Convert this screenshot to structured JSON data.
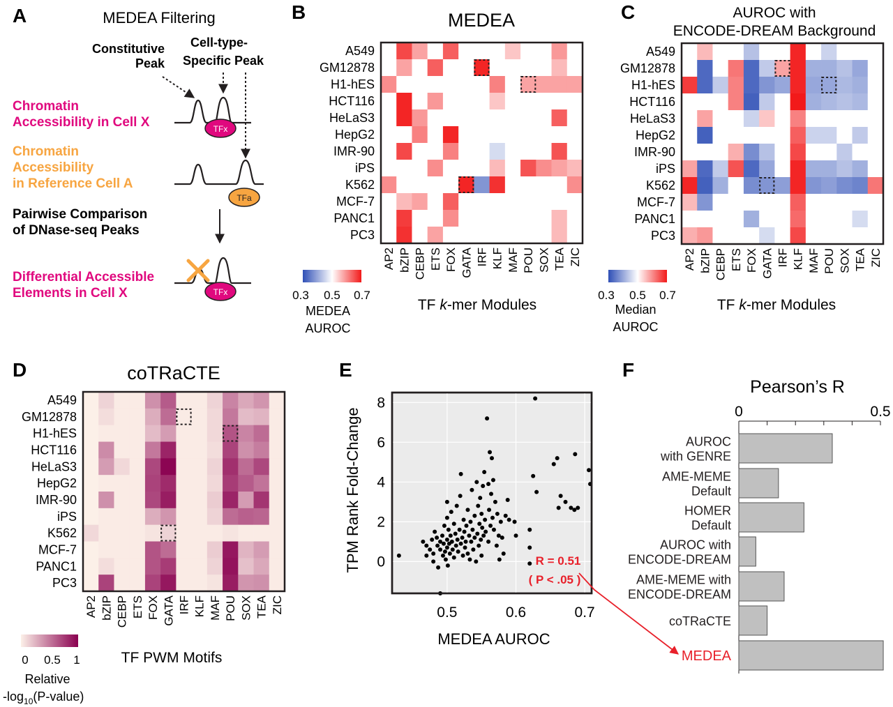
{
  "rows": [
    "A549",
    "GM12878",
    "H1-hES",
    "HCT116",
    "HeLaS3",
    "HepG2",
    "IMR-90",
    "iPS",
    "K562",
    "MCF-7",
    "PANC1",
    "PC3"
  ],
  "panelA": {
    "letter": "A",
    "title": "MEDEA Filtering",
    "constitutive_label": [
      "Constitutive",
      "Peak"
    ],
    "specific_label": [
      "Cell-type-",
      "Specific Peak"
    ],
    "cellx_label": [
      "Chromatin",
      "Accessibility in Cell X"
    ],
    "refa_label": [
      "Chromatin",
      "Accessibility",
      "in Reference Cell A"
    ],
    "pairwise_label": [
      "Pairwise Comparison",
      "of DNase-seq Peaks"
    ],
    "diff_label": [
      "Differential Accessible",
      "Elements in Cell X"
    ],
    "tfx": "TFx",
    "tfa": "TFa",
    "colors": {
      "magenta": "#e0087e",
      "orange": "#f7a541"
    }
  },
  "panelB": {
    "letter": "B",
    "title": "MEDEA",
    "xlabel_pre": "TF ",
    "xlabel_it": "k",
    "xlabel_post": "-mer Modules",
    "cols": [
      "AP2",
      "bZIP",
      "CEBP",
      "ETS",
      "FOX",
      "GATA",
      "IRF",
      "KLF",
      "MAF",
      "POU",
      "SOX",
      "TEA",
      "ZIC"
    ],
    "scale_ticks": [
      "0.3",
      "0.5",
      "0.7"
    ],
    "scale_label": [
      "MEDEA",
      "AUROC"
    ],
    "range": [
      0.3,
      0.7
    ],
    "matrix": [
      [
        0.5,
        0.66,
        0.58,
        0.5,
        0.64,
        0.5,
        0.5,
        0.5,
        0.55,
        0.5,
        0.5,
        0.59,
        0.5
      ],
      [
        0.5,
        0.58,
        0.5,
        0.64,
        0.5,
        0.5,
        0.69,
        0.5,
        0.5,
        0.5,
        0.5,
        0.56,
        0.5
      ],
      [
        0.6,
        0.5,
        0.5,
        0.5,
        0.5,
        0.5,
        0.5,
        0.61,
        0.5,
        0.58,
        0.58,
        0.58,
        0.58
      ],
      [
        0.5,
        0.69,
        0.5,
        0.59,
        0.5,
        0.5,
        0.5,
        0.55,
        0.5,
        0.5,
        0.5,
        0.5,
        0.5
      ],
      [
        0.5,
        0.69,
        0.59,
        0.5,
        0.5,
        0.5,
        0.5,
        0.5,
        0.5,
        0.5,
        0.5,
        0.64,
        0.5
      ],
      [
        0.5,
        0.5,
        0.61,
        0.5,
        0.69,
        0.5,
        0.5,
        0.5,
        0.5,
        0.5,
        0.5,
        0.5,
        0.5
      ],
      [
        0.5,
        0.66,
        0.5,
        0.5,
        0.61,
        0.5,
        0.5,
        0.46,
        0.5,
        0.5,
        0.5,
        0.65,
        0.5
      ],
      [
        0.5,
        0.5,
        0.5,
        0.6,
        0.5,
        0.5,
        0.5,
        0.56,
        0.5,
        0.65,
        0.6,
        0.58,
        0.56
      ],
      [
        0.6,
        0.5,
        0.5,
        0.5,
        0.5,
        0.69,
        0.38,
        0.68,
        0.5,
        0.5,
        0.5,
        0.5,
        0.6
      ],
      [
        0.5,
        0.56,
        0.58,
        0.5,
        0.64,
        0.5,
        0.5,
        0.5,
        0.5,
        0.5,
        0.5,
        0.5,
        0.5
      ],
      [
        0.5,
        0.67,
        0.5,
        0.5,
        0.6,
        0.5,
        0.5,
        0.5,
        0.5,
        0.5,
        0.5,
        0.56,
        0.5
      ],
      [
        0.5,
        0.68,
        0.5,
        0.58,
        0.5,
        0.5,
        0.5,
        0.5,
        0.5,
        0.5,
        0.5,
        0.56,
        0.5
      ]
    ],
    "boxes": [
      [
        1,
        6
      ],
      [
        2,
        9
      ],
      [
        8,
        5
      ]
    ]
  },
  "panelC": {
    "letter": "C",
    "title": [
      "AUROC with",
      "ENCODE-DREAM Background"
    ],
    "xlabel_pre": "TF ",
    "xlabel_it": "k",
    "xlabel_post": "-mer Modules",
    "cols": [
      "AP2",
      "bZIP",
      "CEBP",
      "ETS",
      "FOX",
      "GATA",
      "IRF",
      "KLF",
      "MAF",
      "POU",
      "SOX",
      "TEA",
      "ZIC"
    ],
    "scale_ticks": [
      "0.3",
      "0.5",
      "0.7"
    ],
    "scale_label": [
      "Median",
      "AUROC"
    ],
    "range": [
      0.3,
      0.7
    ],
    "matrix": [
      [
        0.5,
        0.56,
        0.5,
        0.5,
        0.43,
        0.5,
        0.5,
        0.69,
        0.5,
        0.45,
        0.5,
        0.5,
        0.5
      ],
      [
        0.5,
        0.33,
        0.5,
        0.62,
        0.33,
        0.44,
        0.58,
        0.69,
        0.41,
        0.41,
        0.43,
        0.4,
        0.5
      ],
      [
        0.67,
        0.33,
        0.44,
        0.61,
        0.33,
        0.38,
        0.4,
        0.69,
        0.4,
        0.4,
        0.42,
        0.41,
        0.5
      ],
      [
        0.5,
        0.5,
        0.5,
        0.61,
        0.32,
        0.44,
        0.5,
        0.7,
        0.41,
        0.42,
        0.43,
        0.42,
        0.5
      ],
      [
        0.5,
        0.58,
        0.5,
        0.5,
        0.45,
        0.55,
        0.5,
        0.61,
        0.5,
        0.5,
        0.5,
        0.5,
        0.5
      ],
      [
        0.5,
        0.32,
        0.5,
        0.5,
        0.5,
        0.5,
        0.5,
        0.64,
        0.45,
        0.45,
        0.5,
        0.44,
        0.5
      ],
      [
        0.5,
        0.5,
        0.5,
        0.57,
        0.37,
        0.43,
        0.5,
        0.66,
        0.5,
        0.5,
        0.44,
        0.5,
        0.5
      ],
      [
        0.58,
        0.33,
        0.44,
        0.65,
        0.33,
        0.4,
        0.5,
        0.69,
        0.41,
        0.41,
        0.43,
        0.41,
        0.5
      ],
      [
        0.69,
        0.32,
        0.41,
        0.5,
        0.37,
        0.38,
        0.39,
        0.69,
        0.38,
        0.39,
        0.37,
        0.36,
        0.62
      ],
      [
        0.56,
        0.38,
        0.5,
        0.5,
        0.5,
        0.5,
        0.5,
        0.64,
        0.5,
        0.5,
        0.5,
        0.5,
        0.5
      ],
      [
        0.5,
        0.5,
        0.5,
        0.5,
        0.41,
        0.5,
        0.5,
        0.63,
        0.5,
        0.5,
        0.5,
        0.46,
        0.5
      ],
      [
        0.57,
        0.59,
        0.5,
        0.5,
        0.5,
        0.46,
        0.5,
        0.66,
        0.5,
        0.5,
        0.5,
        0.5,
        0.5
      ]
    ],
    "boxes": [
      [
        1,
        6
      ],
      [
        2,
        9
      ],
      [
        8,
        5
      ]
    ]
  },
  "panelD": {
    "letter": "D",
    "title": "coTRaCTE",
    "xlabel": "TF PWM Motifs",
    "cols": [
      "AP2",
      "bZIP",
      "CEBP",
      "ETS",
      "FOX",
      "GATA",
      "IRF",
      "KLF",
      "MAF",
      "POU",
      "SOX",
      "TEA",
      "ZIC"
    ],
    "scale_ticks": [
      "0",
      "0.5",
      "1"
    ],
    "scale_label_1": "Relative",
    "scale_label_2_pre": "-log",
    "scale_label_2_sub": "10",
    "scale_label_2_post": "(P-value)",
    "range": [
      0,
      1
    ],
    "matrix": [
      [
        0.0,
        0.12,
        0.02,
        0.02,
        0.4,
        0.62,
        0.02,
        0.02,
        0.12,
        0.45,
        0.3,
        0.38,
        0.02
      ],
      [
        0.0,
        0.08,
        0.02,
        0.02,
        0.28,
        0.55,
        0.02,
        0.02,
        0.1,
        0.5,
        0.22,
        0.25,
        0.02
      ],
      [
        0.0,
        0.02,
        0.02,
        0.02,
        0.22,
        0.35,
        0.02,
        0.02,
        0.1,
        0.65,
        0.45,
        0.55,
        0.02
      ],
      [
        0.0,
        0.42,
        0.02,
        0.02,
        0.5,
        0.85,
        0.02,
        0.02,
        0.08,
        0.72,
        0.4,
        0.48,
        0.02
      ],
      [
        0.0,
        0.35,
        0.1,
        0.02,
        0.7,
        0.98,
        0.02,
        0.02,
        0.12,
        0.8,
        0.55,
        0.7,
        0.02
      ],
      [
        0.0,
        0.02,
        0.02,
        0.02,
        0.72,
        0.82,
        0.02,
        0.02,
        0.1,
        0.75,
        0.62,
        0.52,
        0.02
      ],
      [
        0.0,
        0.4,
        0.02,
        0.02,
        0.7,
        0.88,
        0.02,
        0.02,
        0.15,
        0.85,
        0.35,
        0.78,
        0.02
      ],
      [
        0.0,
        0.02,
        0.02,
        0.02,
        0.28,
        0.38,
        0.02,
        0.02,
        0.12,
        0.55,
        0.6,
        0.58,
        0.02
      ],
      [
        0.1,
        0.02,
        0.02,
        0.02,
        0.05,
        0.12,
        0.02,
        0.02,
        0.02,
        0.05,
        0.02,
        0.02,
        0.02
      ],
      [
        0.0,
        0.02,
        0.02,
        0.02,
        0.65,
        0.55,
        0.02,
        0.02,
        0.15,
        0.9,
        0.25,
        0.35,
        0.02
      ],
      [
        0.0,
        0.08,
        0.02,
        0.02,
        0.65,
        0.75,
        0.02,
        0.02,
        0.12,
        0.92,
        0.2,
        0.3,
        0.02
      ],
      [
        0.0,
        0.72,
        0.02,
        0.02,
        0.72,
        0.9,
        0.02,
        0.02,
        0.05,
        0.88,
        0.38,
        0.4,
        0.02
      ]
    ],
    "boxes": [
      [
        1,
        6
      ],
      [
        2,
        9
      ],
      [
        8,
        5
      ]
    ]
  },
  "chart_data": [
    {
      "type": "scatter",
      "letter": "E",
      "xlabel": "MEDEA AUROC",
      "ylabel": "TPM Rank Fold-Change",
      "xticks": [
        "0.5",
        "0.6",
        "0.7"
      ],
      "yticks": [
        "0",
        "2",
        "4",
        "6",
        "8"
      ],
      "xlim": [
        0.42,
        0.71
      ],
      "ylim": [
        -1.6,
        8.5
      ],
      "grid": true,
      "annotation": [
        "R = 0.51",
        "( P < .05 )"
      ],
      "points": [
        [
          0.43,
          0.3
        ],
        [
          0.465,
          1.0
        ],
        [
          0.47,
          0.8
        ],
        [
          0.47,
          0.3
        ],
        [
          0.475,
          0.6
        ],
        [
          0.478,
          1.1
        ],
        [
          0.48,
          0.0
        ],
        [
          0.48,
          0.4
        ],
        [
          0.482,
          1.5
        ],
        [
          0.485,
          1.2
        ],
        [
          0.486,
          0.8
        ],
        [
          0.487,
          -0.3
        ],
        [
          0.49,
          1.0
        ],
        [
          0.49,
          0.6
        ],
        [
          0.49,
          -1.6
        ],
        [
          0.493,
          1.3
        ],
        [
          0.494,
          0.3
        ],
        [
          0.495,
          0.9
        ],
        [
          0.496,
          1.8
        ],
        [
          0.497,
          0.5
        ],
        [
          0.498,
          0.1
        ],
        [
          0.5,
          1.1
        ],
        [
          0.5,
          0.7
        ],
        [
          0.5,
          2.2
        ],
        [
          0.5,
          3.0
        ],
        [
          0.501,
          -0.2
        ],
        [
          0.502,
          1.6
        ],
        [
          0.503,
          0.9
        ],
        [
          0.504,
          0.4
        ],
        [
          0.505,
          1.3
        ],
        [
          0.506,
          2.5
        ],
        [
          0.507,
          1.0
        ],
        [
          0.508,
          0.6
        ],
        [
          0.51,
          1.9
        ],
        [
          0.51,
          0.2
        ],
        [
          0.512,
          1.4
        ],
        [
          0.513,
          0.8
        ],
        [
          0.514,
          2.8
        ],
        [
          0.515,
          1.1
        ],
        [
          0.516,
          0.5
        ],
        [
          0.518,
          1.6
        ],
        [
          0.519,
          3.3
        ],
        [
          0.52,
          0.9
        ],
        [
          0.52,
          4.4
        ],
        [
          0.522,
          1.2
        ],
        [
          0.523,
          0.3
        ],
        [
          0.524,
          2.1
        ],
        [
          0.525,
          1.5
        ],
        [
          0.526,
          0.7
        ],
        [
          0.527,
          1.0
        ],
        [
          0.528,
          1.8
        ],
        [
          0.53,
          2.6
        ],
        [
          0.53,
          0.4
        ],
        [
          0.532,
          1.3
        ],
        [
          0.533,
          0.1
        ],
        [
          0.534,
          2.0
        ],
        [
          0.535,
          1.0
        ],
        [
          0.536,
          3.6
        ],
        [
          0.537,
          1.6
        ],
        [
          0.538,
          0.6
        ],
        [
          0.54,
          2.3
        ],
        [
          0.54,
          1.2
        ],
        [
          0.542,
          0.0
        ],
        [
          0.543,
          4.0
        ],
        [
          0.544,
          1.4
        ],
        [
          0.545,
          2.8
        ],
        [
          0.546,
          0.8
        ],
        [
          0.547,
          1.9
        ],
        [
          0.548,
          3.2
        ],
        [
          0.549,
          1.1
        ],
        [
          0.55,
          2.4
        ],
        [
          0.55,
          0.3
        ],
        [
          0.551,
          1.7
        ],
        [
          0.552,
          3.8
        ],
        [
          0.553,
          1.3
        ],
        [
          0.554,
          4.5
        ],
        [
          0.555,
          2.1
        ],
        [
          0.556,
          1.5
        ],
        [
          0.558,
          7.2
        ],
        [
          0.56,
          3.9
        ],
        [
          0.56,
          1.0
        ],
        [
          0.561,
          2.6
        ],
        [
          0.562,
          5.5
        ],
        [
          0.563,
          1.8
        ],
        [
          0.564,
          3.4
        ],
        [
          0.565,
          5.2
        ],
        [
          0.566,
          2.2
        ],
        [
          0.567,
          4.1
        ],
        [
          0.568,
          1.6
        ],
        [
          0.57,
          3.0
        ],
        [
          0.572,
          0.8
        ],
        [
          0.573,
          2.4
        ],
        [
          0.575,
          1.3
        ],
        [
          0.576,
          0.1
        ],
        [
          0.578,
          2.0
        ],
        [
          0.58,
          1.2
        ],
        [
          0.582,
          0.4
        ],
        [
          0.585,
          2.3
        ],
        [
          0.588,
          3.1
        ],
        [
          0.59,
          2.1
        ],
        [
          0.598,
          2.0
        ],
        [
          0.6,
          1.3
        ],
        [
          0.62,
          0.7
        ],
        [
          0.62,
          1.6
        ],
        [
          0.625,
          4.3
        ],
        [
          0.628,
          8.2
        ],
        [
          0.63,
          3.5
        ],
        [
          0.655,
          4.9
        ],
        [
          0.66,
          5.2
        ],
        [
          0.662,
          2.7
        ],
        [
          0.665,
          3.3
        ],
        [
          0.672,
          3.0
        ],
        [
          0.68,
          2.7
        ],
        [
          0.685,
          2.6
        ],
        [
          0.686,
          5.4
        ],
        [
          0.69,
          2.7
        ],
        [
          0.706,
          4.6
        ],
        [
          0.708,
          3.9
        ],
        [
          0.62,
          -0.1
        ]
      ]
    },
    {
      "type": "bar",
      "letter": "F",
      "title": "Pearson’s R",
      "xticks": [
        "0",
        "0.5"
      ],
      "xlim": [
        0,
        0.5
      ],
      "categories": [
        [
          "AUROC",
          "with GENRE"
        ],
        [
          "AME-MEME",
          "Default"
        ],
        [
          "HOMER",
          "Default"
        ],
        [
          "AUROC with",
          "ENCODE-DREAM"
        ],
        [
          "AME-MEME with",
          "ENCODE-DREAM"
        ],
        [
          "coTRaCTE"
        ],
        [
          "MEDEA"
        ]
      ],
      "values": [
        0.33,
        0.14,
        0.23,
        0.06,
        0.16,
        0.1,
        0.51
      ],
      "highlight_index": 6,
      "colors": {
        "bar": "#c0c0c0",
        "highlight": "#e8202a"
      }
    }
  ]
}
